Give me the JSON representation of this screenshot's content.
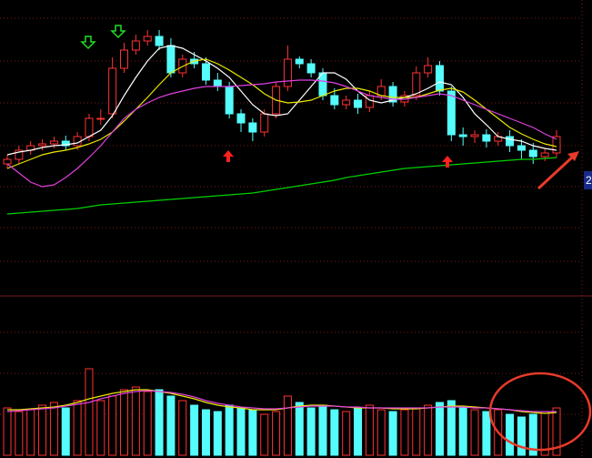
{
  "chart_data": [
    {
      "type": "candlestick",
      "ylim": [
        0,
        325
      ],
      "up_color": "#ff3232",
      "down_color": "#54fcfc",
      "open": [
        145,
        150,
        160,
        165,
        167,
        170,
        165,
        175,
        195,
        200,
        250,
        270,
        280,
        285,
        275,
        245,
        260,
        255,
        237,
        230,
        200,
        190,
        180,
        200,
        230,
        260,
        255,
        245,
        220,
        210,
        215,
        207,
        220,
        230,
        213,
        220,
        245,
        253,
        225,
        177,
        175,
        177,
        170,
        175,
        165,
        160,
        153,
        157
      ],
      "high": [
        155,
        165,
        170,
        172,
        175,
        176,
        180,
        200,
        205,
        262,
        278,
        287,
        292,
        292,
        283,
        265,
        268,
        262,
        245,
        235,
        205,
        195,
        205,
        235,
        275,
        263,
        260,
        250,
        228,
        220,
        222,
        225,
        238,
        235,
        225,
        252,
        262,
        258,
        230,
        185,
        182,
        183,
        180,
        182,
        172,
        168,
        162,
        182
      ],
      "low": [
        140,
        145,
        155,
        160,
        162,
        160,
        160,
        170,
        188,
        195,
        245,
        265,
        275,
        270,
        240,
        240,
        250,
        232,
        225,
        195,
        180,
        170,
        175,
        195,
        225,
        250,
        240,
        215,
        205,
        205,
        200,
        202,
        215,
        208,
        208,
        215,
        240,
        220,
        170,
        165,
        168,
        163,
        165,
        158,
        150,
        145,
        148,
        152
      ],
      "close": [
        150,
        160,
        165,
        167,
        170,
        165,
        175,
        195,
        195,
        250,
        270,
        280,
        285,
        275,
        245,
        260,
        255,
        237,
        230,
        200,
        190,
        180,
        200,
        230,
        260,
        255,
        245,
        220,
        210,
        215,
        207,
        220,
        230,
        213,
        220,
        245,
        253,
        225,
        177,
        175,
        177,
        170,
        175,
        165,
        160,
        153,
        157,
        175
      ],
      "series": [
        {
          "color": "#ffffff",
          "values": [
            155,
            158,
            160,
            163,
            165,
            166,
            168,
            175,
            182,
            198,
            220,
            240,
            258,
            272,
            275,
            272,
            265,
            258,
            250,
            240,
            225,
            210,
            200,
            198,
            200,
            215,
            230,
            245,
            245,
            238,
            225,
            215,
            212,
            215,
            218,
            222,
            228,
            235,
            232,
            218,
            200,
            188,
            175,
            172,
            170,
            165,
            162,
            160
          ]
        },
        {
          "color": "#e8e800",
          "values": [
            140,
            145,
            150,
            155,
            158,
            160,
            163,
            167,
            172,
            180,
            192,
            205,
            218,
            232,
            245,
            252,
            258,
            260,
            255,
            248,
            240,
            232,
            222,
            215,
            212,
            213,
            215,
            220,
            225,
            228,
            228,
            225,
            220,
            218,
            218,
            218,
            222,
            226,
            228,
            224,
            215,
            205,
            195,
            185,
            178,
            172,
            167,
            164
          ]
        },
        {
          "color": "#e040e0",
          "values": [
            145,
            135,
            125,
            120,
            122,
            130,
            140,
            152,
            165,
            180,
            195,
            205,
            212,
            218,
            222,
            225,
            228,
            230,
            230,
            230,
            231,
            232,
            233,
            235,
            236,
            237,
            237,
            236,
            234,
            230,
            225,
            220,
            218,
            216,
            216,
            218,
            220,
            222,
            220,
            215,
            210,
            205,
            200,
            195,
            190,
            185,
            178,
            172
          ]
        },
        {
          "color": "#00d000",
          "values": [
            90,
            91,
            92,
            93,
            94,
            95,
            96,
            98,
            100,
            101,
            102,
            103,
            104,
            105,
            106,
            107,
            108,
            109,
            110,
            111,
            112,
            113,
            115,
            117,
            119,
            121,
            123,
            125,
            127,
            130,
            132,
            134,
            136,
            138,
            140,
            141,
            142,
            143,
            144,
            145,
            146,
            147,
            148,
            149,
            150,
            150,
            151,
            152
          ]
        }
      ]
    },
    {
      "type": "bar",
      "ylim": [
        0,
        100
      ],
      "values": [
        52,
        48,
        50,
        55,
        58,
        52,
        60,
        95,
        60,
        65,
        72,
        75,
        70,
        72,
        65,
        60,
        55,
        50,
        48,
        55,
        52,
        50,
        45,
        48,
        65,
        58,
        52,
        55,
        50,
        48,
        52,
        55,
        50,
        48,
        50,
        52,
        55,
        58,
        60,
        52,
        50,
        48,
        50,
        45,
        42,
        45,
        48,
        52
      ],
      "series": [
        {
          "color": "#e8e800",
          "values": [
            50,
            50,
            51,
            52,
            53,
            55,
            58,
            62,
            65,
            68,
            70,
            72,
            72,
            70,
            68,
            65,
            62,
            58,
            55,
            53,
            52,
            50,
            50,
            50,
            52,
            54,
            55,
            55,
            54,
            53,
            52,
            52,
            52,
            51,
            51,
            51,
            52,
            53,
            54,
            54,
            53,
            52,
            51,
            50,
            48,
            47,
            46,
            47
          ]
        },
        {
          "color": "#e040e0",
          "values": [
            48,
            49,
            50,
            51,
            52,
            54,
            56,
            58,
            62,
            65,
            68,
            70,
            71,
            70,
            69,
            67,
            64,
            60,
            57,
            55,
            53,
            52,
            51,
            51,
            52,
            53,
            54,
            54,
            54,
            53,
            53,
            52,
            52,
            52,
            52,
            52,
            52,
            53,
            53,
            53,
            52,
            52,
            51,
            50,
            49,
            48,
            48,
            48
          ]
        }
      ]
    }
  ],
  "edge_label": "2"
}
